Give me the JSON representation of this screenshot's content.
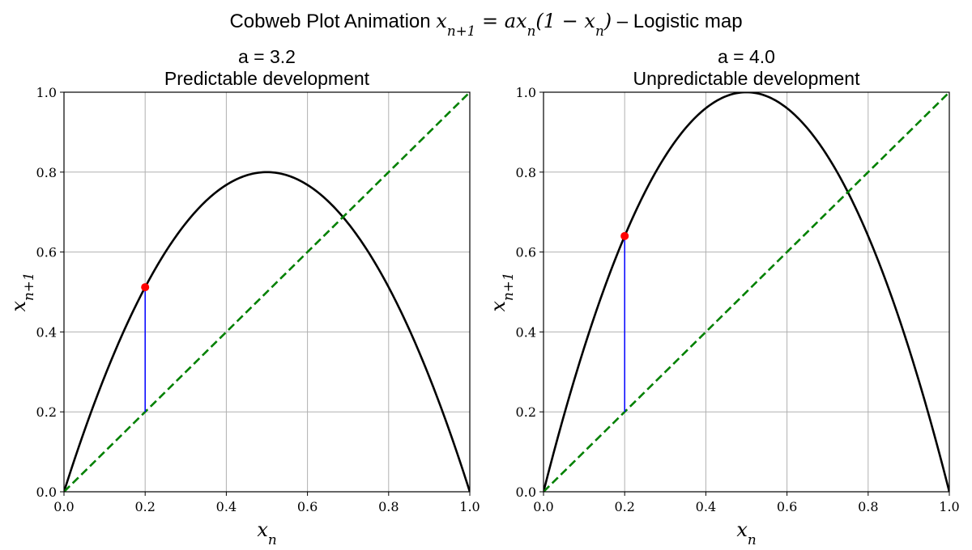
{
  "figure": {
    "title": "Cobweb Plot Animation x_{n+1} = a x_n (1 − x_n) – Logistic map",
    "title_prefix": "Cobweb Plot Animation",
    "title_math": "x_{n+1} = ax_n(1 − x_n)",
    "title_suffix": "– Logistic map"
  },
  "chart_data": [
    {
      "type": "line",
      "title": "a = 3.2",
      "subtitle": "Predictable development",
      "xlabel": "x_n",
      "ylabel": "x_{n+1}",
      "xlim": [
        0.0,
        1.0
      ],
      "ylim": [
        0.0,
        1.0
      ],
      "xticks": [
        "0.0",
        "0.2",
        "0.4",
        "0.6",
        "0.8",
        "1.0"
      ],
      "yticks": [
        "0.0",
        "0.2",
        "0.4",
        "0.6",
        "0.8",
        "1.0"
      ],
      "grid": true,
      "a": 3.2,
      "series": [
        {
          "kind": "curve",
          "function": "a*x*(1-x)",
          "x_range": [
            0.0,
            1.0
          ],
          "color": "#000000"
        },
        {
          "kind": "diagonal",
          "function": "y=x",
          "x": [
            0.0,
            1.0
          ],
          "y": [
            0.0,
            1.0
          ],
          "color": "#008000",
          "style": "dashed"
        },
        {
          "kind": "cobweb",
          "x": [
            0.2,
            0.2
          ],
          "y": [
            0.2,
            0.512
          ],
          "color": "#0000ff"
        },
        {
          "kind": "point",
          "x": [
            0.2
          ],
          "y": [
            0.512
          ],
          "color": "#ff0000"
        }
      ]
    },
    {
      "type": "line",
      "title": "a = 4.0",
      "subtitle": "Unpredictable development",
      "xlabel": "x_n",
      "ylabel": "x_{n+1}",
      "xlim": [
        0.0,
        1.0
      ],
      "ylim": [
        0.0,
        1.0
      ],
      "xticks": [
        "0.0",
        "0.2",
        "0.4",
        "0.6",
        "0.8",
        "1.0"
      ],
      "yticks": [
        "0.0",
        "0.2",
        "0.4",
        "0.6",
        "0.8",
        "1.0"
      ],
      "grid": true,
      "a": 4.0,
      "series": [
        {
          "kind": "curve",
          "function": "a*x*(1-x)",
          "x_range": [
            0.0,
            1.0
          ],
          "color": "#000000"
        },
        {
          "kind": "diagonal",
          "function": "y=x",
          "x": [
            0.0,
            1.0
          ],
          "y": [
            0.0,
            1.0
          ],
          "color": "#008000",
          "style": "dashed"
        },
        {
          "kind": "cobweb",
          "x": [
            0.2,
            0.2
          ],
          "y": [
            0.2,
            0.64
          ],
          "color": "#0000ff"
        },
        {
          "kind": "point",
          "x": [
            0.2
          ],
          "y": [
            0.64
          ],
          "color": "#ff0000"
        }
      ]
    }
  ]
}
